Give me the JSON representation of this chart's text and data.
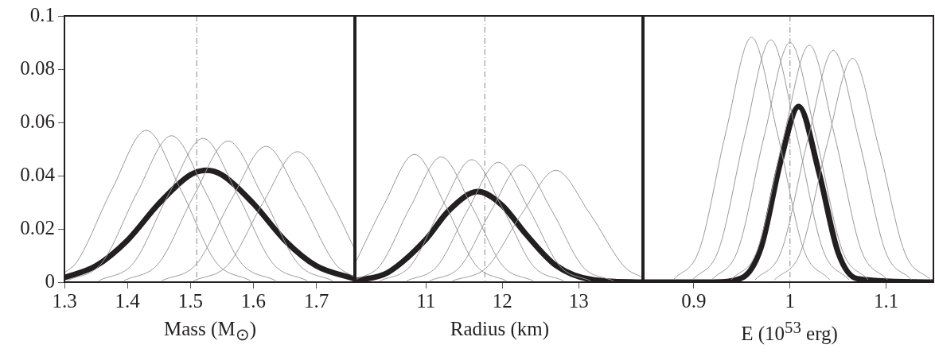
{
  "chart_data": [
    {
      "type": "line",
      "xlabel": "Mass (M$_{⊙}$)",
      "xlim": [
        1.3,
        1.76
      ],
      "xticks": [
        1.3,
        1.4,
        1.5,
        1.6,
        1.7
      ],
      "ylim": [
        0,
        0.1
      ],
      "yticks": [
        0,
        0.02,
        0.04,
        0.06,
        0.08,
        0.1
      ],
      "grid": false,
      "legend": false,
      "marker": "none",
      "line_style": "solid",
      "ref_lines": [
        {
          "axis": "x",
          "value": 1.51,
          "color": "#888888",
          "line_style": "dashed"
        }
      ],
      "series": [
        {
          "color": "#999999",
          "x": [
            1.3,
            1.32,
            1.375,
            1.43,
            1.485,
            1.54,
            1.595
          ],
          "values": [
            0.0035,
            0.0077,
            0.0346,
            0.057,
            0.0346,
            0.0077,
            0.0006
          ]
        },
        {
          "color": "#999999",
          "x": [
            1.305,
            1.36,
            1.415,
            1.47,
            1.525,
            1.58,
            1.635
          ],
          "values": [
            0.0006,
            0.0074,
            0.0334,
            0.055,
            0.0334,
            0.0074,
            0.0006
          ]
        },
        {
          "color": "#999999",
          "x": [
            1.355,
            1.41,
            1.465,
            1.52,
            1.575,
            1.63,
            1.685
          ],
          "values": [
            0.0006,
            0.0073,
            0.0328,
            0.054,
            0.0328,
            0.0073,
            0.0006
          ]
        },
        {
          "color": "#999999",
          "x": [
            1.395,
            1.45,
            1.505,
            1.56,
            1.615,
            1.67,
            1.725
          ],
          "values": [
            0.0006,
            0.0072,
            0.0322,
            0.053,
            0.0322,
            0.0072,
            0.0006
          ]
        },
        {
          "color": "#999999",
          "x": [
            1.455,
            1.51,
            1.565,
            1.62,
            1.675,
            1.73,
            1.76
          ],
          "values": [
            0.0006,
            0.0069,
            0.031,
            0.051,
            0.031,
            0.0069,
            0.002
          ]
        },
        {
          "color": "#999999",
          "x": [
            1.505,
            1.56,
            1.615,
            1.67,
            1.725,
            1.76
          ],
          "values": [
            0.0005,
            0.0066,
            0.0297,
            0.049,
            0.0297,
            0.0128
          ]
        },
        {
          "color": "#231f20",
          "x": [
            1.3,
            1.35,
            1.4,
            1.45,
            1.5,
            1.525,
            1.55,
            1.6,
            1.65,
            1.7,
            1.76
          ],
          "values": [
            0.0017,
            0.0061,
            0.0157,
            0.0295,
            0.0403,
            0.042,
            0.0403,
            0.0295,
            0.0157,
            0.0061,
            0.0013
          ]
        }
      ]
    },
    {
      "type": "line",
      "xlabel": "Radius (km)",
      "xlim": [
        10.08,
        13.83
      ],
      "xticks": [
        11,
        12,
        13
      ],
      "ylim": [
        0,
        0.1
      ],
      "yticks": [
        0,
        0.02,
        0.04,
        0.06,
        0.08,
        0.1
      ],
      "tick_labels": "x",
      "grid": false,
      "legend": false,
      "marker": "none",
      "line_style": "solid",
      "ref_lines": [
        {
          "axis": "x",
          "value": 11.77,
          "color": "#888888",
          "line_style": "dashed"
        }
      ],
      "series": [
        {
          "color": "#999999",
          "x": [
            10.08,
            10.45,
            10.85,
            11.25,
            11.65,
            12.05
          ],
          "values": [
            0.0075,
            0.0291,
            0.048,
            0.0291,
            0.0065,
            0.0005
          ]
        },
        {
          "color": "#999999",
          "x": [
            10.08,
            10.4,
            10.8,
            11.2,
            11.6,
            12.0,
            12.4
          ],
          "values": [
            0.0009,
            0.0063,
            0.0285,
            0.047,
            0.0285,
            0.0063,
            0.0005
          ]
        },
        {
          "color": "#999999",
          "x": [
            10.4,
            10.8,
            11.2,
            11.6,
            12.0,
            12.4,
            12.8
          ],
          "values": [
            0.0005,
            0.0062,
            0.0279,
            0.046,
            0.0279,
            0.0062,
            0.0005
          ]
        },
        {
          "color": "#999999",
          "x": [
            10.75,
            11.15,
            11.55,
            11.95,
            12.35,
            12.75,
            13.15
          ],
          "values": [
            0.0005,
            0.0061,
            0.0273,
            0.045,
            0.0273,
            0.0061,
            0.0005
          ]
        },
        {
          "color": "#999999",
          "x": [
            11.05,
            11.45,
            11.85,
            12.25,
            12.65,
            13.05,
            13.45
          ],
          "values": [
            0.0005,
            0.0059,
            0.0267,
            0.044,
            0.0267,
            0.0059,
            0.0005
          ]
        },
        {
          "color": "#999999",
          "x": [
            11.35,
            11.8,
            12.25,
            12.7,
            13.15,
            13.6,
            13.83
          ],
          "values": [
            0.0005,
            0.0057,
            0.0255,
            0.042,
            0.0255,
            0.0057,
            0.0018
          ]
        },
        {
          "color": "#231f20",
          "x": [
            10.08,
            10.5,
            11,
            11.3,
            11.68,
            12,
            12.3,
            12.7,
            13.2,
            13.83
          ],
          "values": [
            0.0005,
            0.0036,
            0.0161,
            0.0269,
            0.034,
            0.0288,
            0.0183,
            0.0063,
            0.0008,
            0
          ]
        }
      ]
    },
    {
      "type": "line",
      "xlabel": "E (10$^{53}$ erg)",
      "xlim": [
        0.848,
        1.149
      ],
      "xticks": [
        0.9,
        1,
        1.1
      ],
      "ylim": [
        0,
        0.1
      ],
      "yticks": [
        0,
        0.02,
        0.04,
        0.06,
        0.08,
        0.1
      ],
      "tick_labels": "x",
      "grid": false,
      "legend": false,
      "marker": "none",
      "line_style": "solid",
      "ref_lines": [
        {
          "axis": "x",
          "value": 1.0,
          "color": "#888888",
          "line_style": "dashed"
        }
      ],
      "series": [
        {
          "color": "#999999",
          "x": [
            0.879,
            0.906,
            0.933,
            0.96,
            0.987,
            1.014,
            1.041
          ],
          "values": [
            0.001,
            0.0124,
            0.0558,
            0.092,
            0.0558,
            0.0124,
            0.001
          ]
        },
        {
          "color": "#999999",
          "x": [
            0.899,
            0.926,
            0.953,
            0.98,
            1.007,
            1.034,
            1.061
          ],
          "values": [
            0.001,
            0.0123,
            0.0552,
            0.091,
            0.0552,
            0.0123,
            0.001
          ]
        },
        {
          "color": "#999999",
          "x": [
            0.919,
            0.946,
            0.973,
            1.0,
            1.027,
            1.054,
            1.081
          ],
          "values": [
            0.001,
            0.0122,
            0.0546,
            0.09,
            0.0546,
            0.0122,
            0.001
          ]
        },
        {
          "color": "#999999",
          "x": [
            0.939,
            0.966,
            0.993,
            1.02,
            1.047,
            1.074,
            1.101
          ],
          "values": [
            0.001,
            0.012,
            0.054,
            0.089,
            0.054,
            0.012,
            0.001
          ]
        },
        {
          "color": "#999999",
          "x": [
            0.964,
            0.991,
            1.018,
            1.045,
            1.072,
            1.099,
            1.126
          ],
          "values": [
            0.001,
            0.0117,
            0.0528,
            0.087,
            0.0528,
            0.0117,
            0.001
          ]
        },
        {
          "color": "#999999",
          "x": [
            0.984,
            1.011,
            1.038,
            1.065,
            1.092,
            1.119,
            1.146
          ],
          "values": [
            0.0009,
            0.0113,
            0.051,
            0.084,
            0.051,
            0.0113,
            0.0009
          ]
        },
        {
          "color": "#231f20",
          "x": [
            0.848,
            0.92,
            0.95,
            0.97,
            0.99,
            1.009,
            1.03,
            1.05,
            1.07,
            1.149
          ],
          "values": [
            0,
            0,
            0.0016,
            0.0131,
            0.045,
            0.066,
            0.0413,
            0.0111,
            0.0013,
            0
          ]
        }
      ]
    }
  ]
}
